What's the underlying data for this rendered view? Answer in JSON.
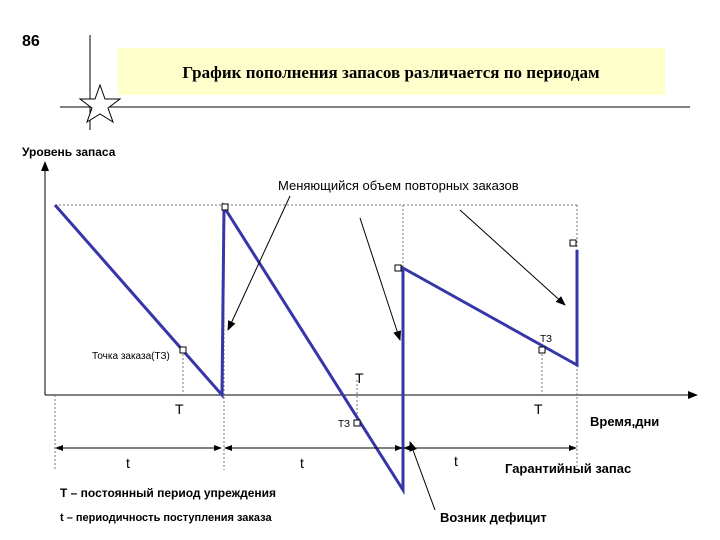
{
  "slide_number": "86",
  "title": "График пополнения запасов различается по периодам",
  "y_axis_label": "Уровень запаса",
  "x_axis_label": "Время,дни",
  "annotations": {
    "reorder_volume": "Меняющийся объем повторных заказов",
    "order_point": "Точка заказа(ТЗ)",
    "tz_right": "ТЗ",
    "tz_middle": "ТЗ",
    "lead_mid": "Т",
    "lead_left": "Т",
    "lead_right": "Т",
    "period_1": "t",
    "period_2": "t",
    "period_3": "t",
    "safety_stock": "Гарантийный запас",
    "deficit": "Возник дефицит"
  },
  "legend": {
    "lead_time": "Т – постоянный период упреждения",
    "period": "t – периодичность поступления заказа"
  }
}
